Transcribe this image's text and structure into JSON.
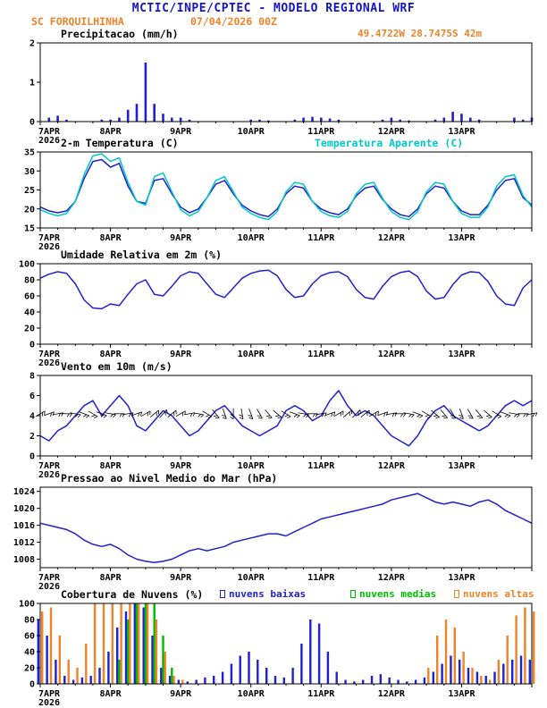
{
  "header": {
    "title": "MCTIC/INPE/CPTEC - MODELO REGIONAL WRF",
    "station": "SC FORQUILHINHA",
    "run": "07/04/2026 00Z",
    "location": "49.4722W 28.7475S 42m",
    "title_color": "#1414c8",
    "accent_color": "#f08228"
  },
  "x_axis": {
    "hours_total": 168,
    "step_hours": 3,
    "tick_labels": [
      "7APR",
      "8APR",
      "9APR",
      "10APR",
      "11APR",
      "12APR",
      "13APR"
    ],
    "year_label": "2026"
  },
  "chart_data": [
    {
      "id": "precipitation",
      "type": "bar",
      "title": "Precipitacao (mm/h)",
      "ylim": [
        0,
        2
      ],
      "yticks": [
        0,
        1,
        2
      ],
      "series": [
        {
          "name": "precipitacao",
          "color": "#2020d0",
          "values": [
            0,
            0.1,
            0.15,
            0.05,
            0,
            0,
            0,
            0.05,
            0.05,
            0.1,
            0.3,
            0.45,
            1.5,
            0.45,
            0.2,
            0.1,
            0.1,
            0.05,
            0,
            0,
            0,
            0,
            0,
            0,
            0.05,
            0.05,
            0.03,
            0,
            0,
            0.05,
            0.1,
            0.12,
            0.1,
            0.08,
            0.05,
            0,
            0,
            0,
            0,
            0.05,
            0.1,
            0.05,
            0.03,
            0,
            0,
            0.05,
            0.1,
            0.25,
            0.2,
            0.1,
            0.05,
            0,
            0,
            0,
            0.1,
            0.05,
            0.1
          ]
        }
      ]
    },
    {
      "id": "temperature-2m",
      "type": "line",
      "title": "2-m Temperatura (C)",
      "subtitle": "Temperatura Aparente (C)",
      "ylim": [
        15,
        35
      ],
      "yticks": [
        15,
        20,
        25,
        30,
        35
      ],
      "series": [
        {
          "name": "temperatura",
          "color": "#2020d0",
          "values": [
            20.5,
            19.5,
            19,
            19.5,
            22,
            28,
            32.5,
            33,
            31,
            32,
            26,
            22,
            21.5,
            27.5,
            28,
            24,
            20.5,
            19,
            20,
            23,
            26.5,
            27.5,
            24,
            21,
            19.5,
            18.5,
            18,
            20,
            24,
            26,
            25.5,
            22,
            20,
            19,
            18.5,
            20,
            23.5,
            25.5,
            26,
            22.5,
            20,
            18.5,
            18,
            20,
            24,
            26,
            25.5,
            22,
            19.5,
            18.5,
            18.5,
            21,
            25,
            27.5,
            28,
            23,
            21
          ]
        },
        {
          "name": "temperatura-aparente",
          "color": "#00c8c8",
          "values": [
            19.8,
            18.8,
            18.2,
            18.8,
            22,
            29,
            34,
            34.5,
            32.5,
            33.5,
            27,
            22,
            21,
            28.5,
            29.5,
            24.5,
            19.8,
            18.2,
            19.3,
            23,
            27.5,
            28.5,
            24.5,
            20.5,
            18.8,
            17.8,
            17.2,
            19.3,
            24.5,
            27,
            26.5,
            22,
            19.3,
            18.2,
            17.8,
            19.3,
            24,
            26.5,
            27,
            22.8,
            19.3,
            17.8,
            17.2,
            19.3,
            24.5,
            27,
            26.5,
            22,
            18.8,
            17.8,
            17.8,
            20.5,
            26,
            28.5,
            29,
            23.5,
            20.5
          ]
        }
      ]
    },
    {
      "id": "relative-humidity-2m",
      "type": "line",
      "title": "Umidade Relativa em 2m (%)",
      "ylim": [
        0,
        100
      ],
      "yticks": [
        0,
        20,
        40,
        60,
        80,
        100
      ],
      "series": [
        {
          "name": "umidade-relativa",
          "color": "#2020d0",
          "values": [
            82,
            87,
            90,
            88,
            75,
            55,
            45,
            44,
            50,
            48,
            62,
            75,
            80,
            62,
            60,
            72,
            85,
            90,
            88,
            75,
            62,
            58,
            70,
            82,
            88,
            91,
            92,
            85,
            68,
            58,
            60,
            75,
            85,
            89,
            90,
            84,
            68,
            58,
            56,
            72,
            84,
            89,
            91,
            84,
            66,
            56,
            58,
            74,
            86,
            90,
            89,
            78,
            60,
            50,
            48,
            70,
            80
          ]
        }
      ]
    },
    {
      "id": "wind-10m",
      "type": "line",
      "title": "Vento em 10m (m/s)",
      "ylim": [
        0,
        8
      ],
      "yticks": [
        0,
        2,
        4,
        6,
        8
      ],
      "series": [
        {
          "name": "vento",
          "color": "#2020d0",
          "values": [
            2,
            1.5,
            2.5,
            3,
            4,
            5,
            5.5,
            4,
            5,
            6,
            5,
            3,
            2.5,
            3.5,
            4.5,
            4,
            3,
            2,
            2.5,
            3.5,
            4.5,
            5,
            4,
            3,
            2.5,
            2,
            2.5,
            3,
            4.5,
            5,
            4.5,
            3.5,
            4,
            5.5,
            6.5,
            5,
            4,
            4.5,
            4,
            3,
            2,
            1.5,
            1,
            2,
            3.5,
            4.5,
            5,
            4,
            3.5,
            3,
            2.5,
            3,
            4,
            5,
            5.5,
            5,
            5.5
          ]
        }
      ],
      "barbs": {
        "y": 4.2,
        "directions": [
          60,
          70,
          80,
          90,
          100,
          110,
          120,
          110,
          100,
          90,
          80,
          70,
          60,
          50,
          40,
          50,
          60,
          80,
          100,
          120,
          140,
          160,
          180,
          170,
          160,
          150,
          140,
          130,
          120,
          110,
          100,
          90,
          80,
          70,
          60,
          50,
          45,
          50,
          60,
          70,
          80,
          90,
          100,
          110,
          120,
          130,
          140,
          150,
          160,
          150,
          140,
          130,
          120,
          110,
          100,
          90,
          80
        ]
      }
    },
    {
      "id": "mean-sea-level-pressure",
      "type": "line",
      "title": "Pressao ao Nivel Medio do Mar (hPa)",
      "ylim": [
        1006,
        1025
      ],
      "yticks": [
        1008,
        1012,
        1016,
        1020,
        1024
      ],
      "series": [
        {
          "name": "pressao",
          "color": "#2020d0",
          "values": [
            1016.5,
            1016,
            1015.5,
            1015,
            1014,
            1012.5,
            1011.5,
            1011,
            1011.5,
            1010.5,
            1009,
            1008,
            1007.5,
            1007.2,
            1007.5,
            1008,
            1009,
            1010,
            1010.5,
            1010,
            1010.5,
            1011,
            1012,
            1012.5,
            1013,
            1013.5,
            1014,
            1014,
            1013.5,
            1014.5,
            1015.5,
            1016.5,
            1017.5,
            1018,
            1018.5,
            1019,
            1019.5,
            1020,
            1020.5,
            1021,
            1022,
            1022.5,
            1023,
            1023.5,
            1022.5,
            1021.5,
            1021,
            1021.5,
            1021,
            1020.5,
            1021.5,
            1022,
            1021,
            1019.5,
            1018.5,
            1017.5,
            1016.5
          ]
        }
      ]
    },
    {
      "id": "cloud-cover",
      "type": "bar",
      "title": "Cobertura de Nuvens (%)",
      "ylim": [
        0,
        100
      ],
      "yticks": [
        0,
        20,
        40,
        60,
        80,
        100
      ],
      "series": [
        {
          "name": "nuvens-baixas",
          "label": "nuvens baixas",
          "color": "#2020d0",
          "values": [
            80,
            60,
            30,
            10,
            5,
            8,
            10,
            20,
            40,
            70,
            90,
            100,
            95,
            60,
            20,
            10,
            5,
            3,
            5,
            8,
            10,
            15,
            25,
            35,
            40,
            30,
            20,
            10,
            8,
            20,
            50,
            80,
            75,
            40,
            15,
            5,
            3,
            5,
            10,
            12,
            8,
            5,
            3,
            5,
            8,
            15,
            25,
            35,
            30,
            20,
            15,
            10,
            15,
            25,
            30,
            35,
            30
          ]
        },
        {
          "name": "nuvens-medias",
          "label": "nuvens medias",
          "color": "#00bc00",
          "values": [
            0,
            0,
            0,
            0,
            0,
            0,
            0,
            0,
            0,
            30,
            80,
            100,
            100,
            100,
            60,
            20,
            0,
            0,
            0,
            0,
            0,
            0,
            0,
            0,
            0,
            0,
            0,
            0,
            0,
            0,
            0,
            0,
            0,
            0,
            0,
            0,
            0,
            0,
            0,
            0,
            0,
            0,
            0,
            0,
            0,
            0,
            0,
            0,
            0,
            0,
            0,
            0,
            0,
            0,
            0,
            0,
            0
          ]
        },
        {
          "name": "nuvens-altas",
          "label": "nuvens altas",
          "color": "#f08228",
          "values": [
            90,
            95,
            60,
            30,
            20,
            50,
            100,
            100,
            100,
            100,
            100,
            100,
            100,
            80,
            40,
            10,
            5,
            0,
            0,
            0,
            0,
            0,
            0,
            0,
            0,
            0,
            0,
            0,
            0,
            0,
            0,
            0,
            0,
            0,
            0,
            0,
            0,
            0,
            0,
            0,
            0,
            0,
            0,
            0,
            20,
            60,
            80,
            70,
            40,
            20,
            10,
            5,
            30,
            60,
            85,
            95,
            90
          ]
        }
      ]
    }
  ]
}
